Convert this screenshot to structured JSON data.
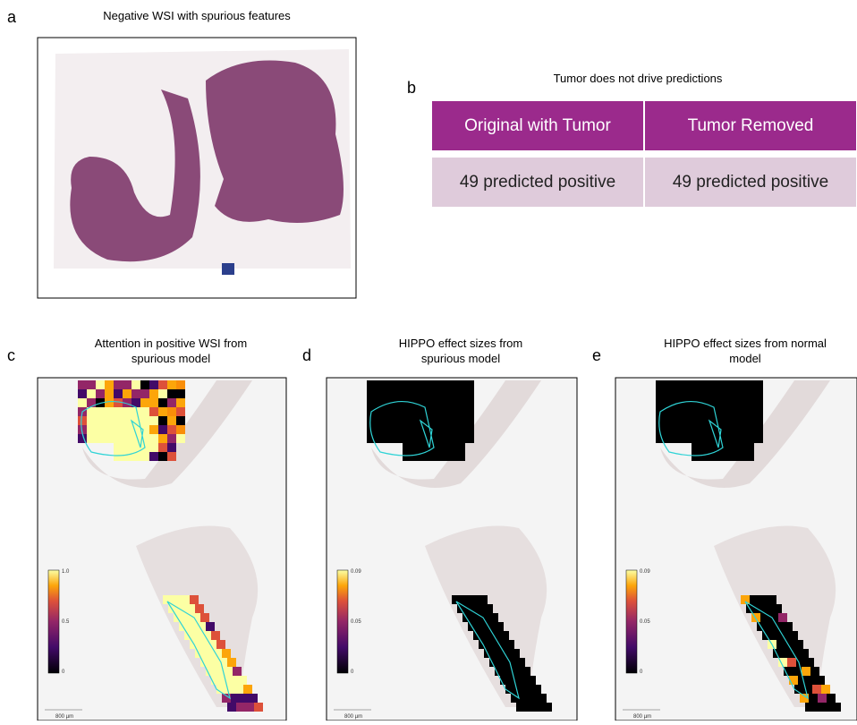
{
  "panels": [
    {
      "label": "a",
      "title": "Negative WSI with spurious features"
    },
    {
      "label": "b",
      "title": "Tumor does not drive predictions"
    },
    {
      "label": "c",
      "title": [
        "Attention in positive WSI from",
        "spurious model"
      ],
      "colorbar": [
        "1.0",
        "0.5",
        "0"
      ],
      "scale": "800 µm"
    },
    {
      "label": "d",
      "title": [
        "HIPPO effect sizes from",
        "spurious model"
      ],
      "colorbar": [
        "0.09",
        "0.05",
        "0"
      ],
      "scale": "800 µm"
    },
    {
      "label": "e",
      "title": [
        "HIPPO effect sizes from normal",
        "model"
      ],
      "colorbar": [
        "0.09",
        "0.05",
        "0"
      ],
      "scale": "800 µm"
    }
  ],
  "table": {
    "header": [
      "Original with Tumor",
      "Tumor Removed"
    ],
    "rows": [
      [
        "49 predicted positive",
        "49 predicted positive"
      ]
    ]
  }
}
